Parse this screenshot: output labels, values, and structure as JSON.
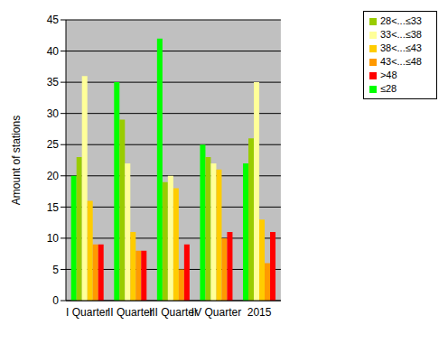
{
  "chart_data": {
    "type": "bar",
    "y_label": "Amount of stations",
    "categories": [
      "I Quarter",
      "II Quarter",
      "III Quarter",
      "IV Quarter",
      "2015"
    ],
    "series": [
      {
        "name": "≤28",
        "color": "#00ff00",
        "values": [
          20,
          35,
          42,
          25,
          22
        ]
      },
      {
        "name": "28<...≤33",
        "color": "#99cc00",
        "values": [
          23,
          29,
          19,
          23,
          26
        ]
      },
      {
        "name": "33<...≤38",
        "color": "#ffff99",
        "values": [
          36,
          22,
          20,
          22,
          35
        ]
      },
      {
        "name": "38<...≤43",
        "color": "#ffcc00",
        "values": [
          16,
          11,
          18,
          21,
          13
        ]
      },
      {
        "name": "43<...≤48",
        "color": "#ff9900",
        "values": [
          9,
          8,
          5,
          10,
          6
        ]
      },
      {
        "name": ">48",
        "color": "#ff0000",
        "values": [
          9,
          8,
          9,
          11,
          11
        ]
      }
    ],
    "ylim": [
      0,
      45
    ],
    "yticks": [
      0,
      5,
      10,
      15,
      20,
      25,
      30,
      35,
      40,
      45
    ],
    "grid": true,
    "legend": "upper right"
  }
}
